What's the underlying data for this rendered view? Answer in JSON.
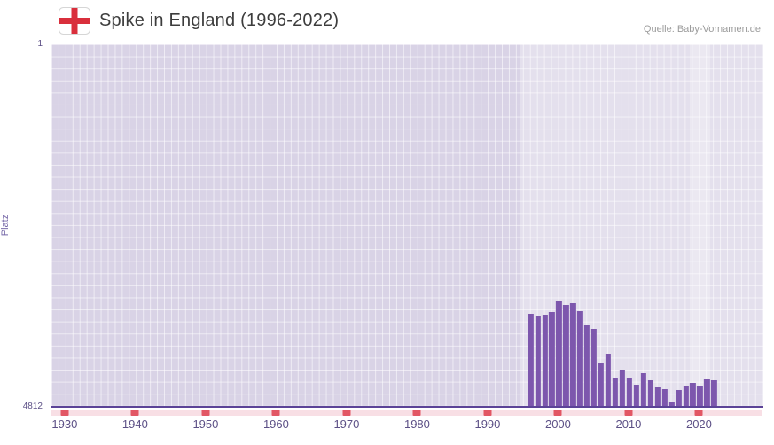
{
  "header": {
    "title": "Spike in England (1996-2022)",
    "source": "Quelle: Baby-Vornamen.de",
    "flag_icon": "england-flag"
  },
  "axes": {
    "y_label": "Platz",
    "y_top_tick": "1",
    "y_bottom_tick": "4812",
    "x_ticks": [
      1930,
      1940,
      1950,
      1960,
      1970,
      1980,
      1990,
      2000,
      2010,
      2020
    ]
  },
  "chart_data": {
    "type": "bar",
    "title": "Spike in England (1996-2022)",
    "ylabel": "Platz",
    "y_axis_inverted": true,
    "ylim": [
      1,
      4812
    ],
    "xlim": [
      1928,
      2029
    ],
    "grid": true,
    "categories": [
      1996,
      1997,
      1998,
      1999,
      2000,
      2001,
      2002,
      2003,
      2004,
      2005,
      2006,
      2007,
      2008,
      2009,
      2010,
      2011,
      2012,
      2013,
      2014,
      2015,
      2016,
      2017,
      2018,
      2019,
      2020,
      2021,
      2022
    ],
    "values": [
      3580,
      3620,
      3600,
      3560,
      3410,
      3470,
      3440,
      3550,
      3740,
      3790,
      4230,
      4120,
      4440,
      4330,
      4440,
      4530,
      4380,
      4470,
      4560,
      4590,
      4760,
      4600,
      4540,
      4500,
      4540,
      4450,
      4470
    ],
    "highlight_regions": [
      {
        "start": 1994.5,
        "end": 2029,
        "opacity": 0.3
      },
      {
        "start": 2018.5,
        "end": 2021.5,
        "opacity": 0.25
      }
    ],
    "decade_markers": [
      1930,
      1940,
      1950,
      1960,
      1970,
      1980,
      1990,
      2000,
      2010,
      2020
    ]
  },
  "colors": {
    "bar": "#7d57ad",
    "plot_bg": "#d9d3e6",
    "axis_line": "#5b4397",
    "tick_text": "#5c5086",
    "y_label": "#7668a8",
    "title_text": "#3d3d3d",
    "source_text": "#9b9b9b",
    "marker_strip_bg": "#f8dfe5",
    "marker": "#e25764",
    "flag_red": "#d92f3c"
  }
}
